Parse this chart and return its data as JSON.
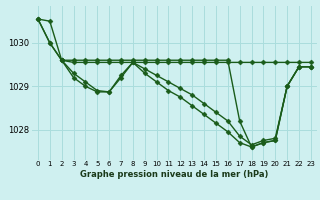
{
  "background_color": "#cff0f0",
  "grid_color": "#aadddd",
  "line_color": "#1a5c1a",
  "marker_color": "#1a5c1a",
  "xlabel": "Graphe pression niveau de la mer (hPa)",
  "ylim": [
    1027.3,
    1030.85
  ],
  "xlim": [
    -0.5,
    23.5
  ],
  "yticks": [
    1028,
    1029,
    1030
  ],
  "xticks": [
    0,
    1,
    2,
    3,
    4,
    5,
    6,
    7,
    8,
    9,
    10,
    11,
    12,
    13,
    14,
    15,
    16,
    17,
    18,
    19,
    20,
    21,
    22,
    23
  ],
  "series": [
    {
      "x": [
        0,
        1,
        2,
        3,
        4,
        5,
        6,
        7,
        8,
        9,
        10,
        11,
        12,
        13,
        14,
        15,
        16,
        17,
        18,
        19,
        20,
        21,
        22,
        23
      ],
      "y": [
        1030.55,
        1030.5,
        1029.6,
        1029.55,
        1029.55,
        1029.55,
        1029.55,
        1029.55,
        1029.55,
        1029.55,
        1029.55,
        1029.55,
        1029.55,
        1029.55,
        1029.55,
        1029.55,
        1029.55,
        1029.55,
        1029.55,
        1029.55,
        1029.55,
        1029.55,
        1029.55,
        1029.55
      ],
      "marker": "D",
      "linewidth": 1.0,
      "markersize": 2.5
    },
    {
      "x": [
        0,
        1,
        2,
        3,
        4,
        5,
        6,
        7,
        8,
        9,
        10,
        11,
        12,
        13,
        14,
        15,
        16,
        17,
        18,
        19,
        20,
        21,
        22,
        23
      ],
      "y": [
        1030.55,
        1030.0,
        1029.6,
        1029.3,
        1029.1,
        1028.9,
        1028.87,
        1029.2,
        1029.55,
        1029.4,
        1029.25,
        1029.1,
        1028.95,
        1028.8,
        1028.6,
        1028.4,
        1028.2,
        1027.85,
        1027.65,
        1027.75,
        1027.8,
        1029.0,
        1029.45,
        1029.45
      ],
      "marker": "D",
      "linewidth": 1.0,
      "markersize": 2.5
    },
    {
      "x": [
        0,
        1,
        2,
        3,
        4,
        5,
        6,
        7,
        8,
        9,
        10,
        11,
        12,
        13,
        14,
        15,
        16,
        17,
        18,
        19,
        20,
        21,
        22,
        23
      ],
      "y": [
        1030.55,
        1030.0,
        1029.6,
        1029.2,
        1029.0,
        1028.87,
        1028.87,
        1029.25,
        1029.55,
        1029.3,
        1029.1,
        1028.9,
        1028.75,
        1028.55,
        1028.35,
        1028.15,
        1027.95,
        1027.7,
        1027.6,
        1027.7,
        1027.75,
        1029.0,
        1029.45,
        1029.45
      ],
      "marker": "D",
      "linewidth": 1.0,
      "markersize": 2.5
    },
    {
      "x": [
        2,
        3,
        4,
        5,
        6,
        7,
        8,
        9,
        10,
        11,
        12,
        13,
        14,
        15,
        16,
        17,
        18,
        19,
        20,
        21,
        22,
        23
      ],
      "y": [
        1029.6,
        1029.6,
        1029.6,
        1029.6,
        1029.6,
        1029.6,
        1029.6,
        1029.6,
        1029.6,
        1029.6,
        1029.6,
        1029.6,
        1029.6,
        1029.6,
        1029.6,
        1028.2,
        1027.6,
        1027.7,
        1027.75,
        1029.0,
        1029.45,
        1029.45
      ],
      "marker": "D",
      "linewidth": 1.0,
      "markersize": 2.5
    }
  ]
}
